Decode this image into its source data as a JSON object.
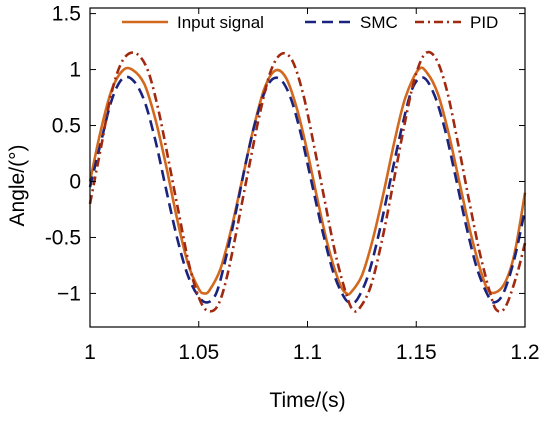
{
  "chart_data": {
    "type": "line",
    "title": "",
    "xlabel": "Time/(s)",
    "ylabel": "Angle/(°)",
    "xlim": [
      1.0,
      1.2
    ],
    "ylim": [
      -1.3,
      1.55
    ],
    "x_ticks": [
      1,
      1.05,
      1.1,
      1.15,
      1.2
    ],
    "x_tick_labels": [
      "1",
      "1.05",
      "1.1",
      "1.15",
      "1.2"
    ],
    "y_ticks": [
      1.5,
      1,
      0.5,
      0,
      -0.5,
      -1
    ],
    "y_tick_labels": [
      "1.5",
      "1",
      "0.5",
      "0",
      "-0.5",
      "−1"
    ],
    "grid": false,
    "legend_position": "top",
    "series": [
      {
        "name": "Input signal",
        "color": "#D2691E",
        "dash": "solid",
        "x": [
          1.0,
          1.005,
          1.01,
          1.015,
          1.0194,
          1.025,
          1.03,
          1.035,
          1.04,
          1.045,
          1.05,
          1.0525,
          1.055,
          1.06,
          1.065,
          1.07,
          1.075,
          1.08,
          1.085,
          1.09,
          1.095,
          1.1,
          1.105,
          1.11,
          1.115,
          1.118,
          1.12,
          1.125,
          1.13,
          1.135,
          1.14,
          1.145,
          1.151,
          1.155,
          1.16,
          1.165,
          1.17,
          1.175,
          1.18,
          1.184,
          1.19,
          1.195,
          1.2
        ],
        "y": [
          0.0,
          0.46,
          0.82,
          0.99,
          1.0,
          0.87,
          0.56,
          0.14,
          -0.33,
          -0.73,
          -0.96,
          -1.0,
          -0.97,
          -0.78,
          -0.42,
          0.02,
          0.46,
          0.82,
          0.99,
          0.93,
          0.66,
          0.26,
          -0.2,
          -0.62,
          -0.92,
          -1.0,
          -0.99,
          -0.84,
          -0.52,
          -0.1,
          0.36,
          0.75,
          1.0,
          0.97,
          0.78,
          0.42,
          -0.02,
          -0.46,
          -0.82,
          -0.99,
          -0.93,
          -0.66,
          -0.1
        ]
      },
      {
        "name": "SMC",
        "color": "#1A237E",
        "dash": "dashed",
        "x": [
          1.0,
          1.005,
          1.01,
          1.015,
          1.02,
          1.025,
          1.03,
          1.035,
          1.04,
          1.045,
          1.05,
          1.054,
          1.058,
          1.062,
          1.067,
          1.072,
          1.077,
          1.082,
          1.087,
          1.092,
          1.097,
          1.102,
          1.107,
          1.112,
          1.117,
          1.12,
          1.123,
          1.128,
          1.133,
          1.138,
          1.143,
          1.148,
          1.153,
          1.158,
          1.163,
          1.168,
          1.173,
          1.178,
          1.183,
          1.186,
          1.19,
          1.195,
          1.2
        ],
        "y": [
          -0.05,
          0.35,
          0.73,
          0.92,
          0.9,
          0.72,
          0.37,
          -0.07,
          -0.5,
          -0.84,
          -1.03,
          -1.08,
          -1.0,
          -0.72,
          -0.28,
          0.2,
          0.6,
          0.87,
          0.92,
          0.76,
          0.42,
          -0.02,
          -0.45,
          -0.82,
          -1.04,
          -1.08,
          -1.05,
          -0.83,
          -0.45,
          -0.0,
          0.45,
          0.82,
          0.93,
          0.79,
          0.48,
          0.05,
          -0.4,
          -0.78,
          -1.02,
          -1.08,
          -1.0,
          -0.7,
          -0.25
        ]
      },
      {
        "name": "PID",
        "color": "#A0290F",
        "dash": "dashdot",
        "x": [
          1.0,
          1.005,
          1.01,
          1.015,
          1.0205,
          1.026,
          1.031,
          1.036,
          1.041,
          1.046,
          1.051,
          1.055,
          1.059,
          1.063,
          1.068,
          1.073,
          1.078,
          1.083,
          1.088,
          1.093,
          1.098,
          1.103,
          1.108,
          1.113,
          1.118,
          1.121,
          1.124,
          1.129,
          1.134,
          1.139,
          1.144,
          1.149,
          1.154,
          1.159,
          1.164,
          1.169,
          1.174,
          1.179,
          1.184,
          1.187,
          1.191,
          1.196,
          1.2
        ],
        "y": [
          -0.2,
          0.3,
          0.8,
          1.08,
          1.15,
          1.02,
          0.68,
          0.2,
          -0.3,
          -0.78,
          -1.08,
          -1.16,
          -1.1,
          -0.85,
          -0.38,
          0.12,
          0.6,
          0.98,
          1.14,
          1.08,
          0.78,
          0.32,
          -0.18,
          -0.66,
          -1.02,
          -1.15,
          -1.13,
          -0.94,
          -0.55,
          -0.06,
          0.45,
          0.9,
          1.14,
          1.1,
          0.82,
          0.36,
          -0.14,
          -0.62,
          -1.0,
          -1.15,
          -1.12,
          -0.85,
          -0.55
        ]
      }
    ]
  }
}
